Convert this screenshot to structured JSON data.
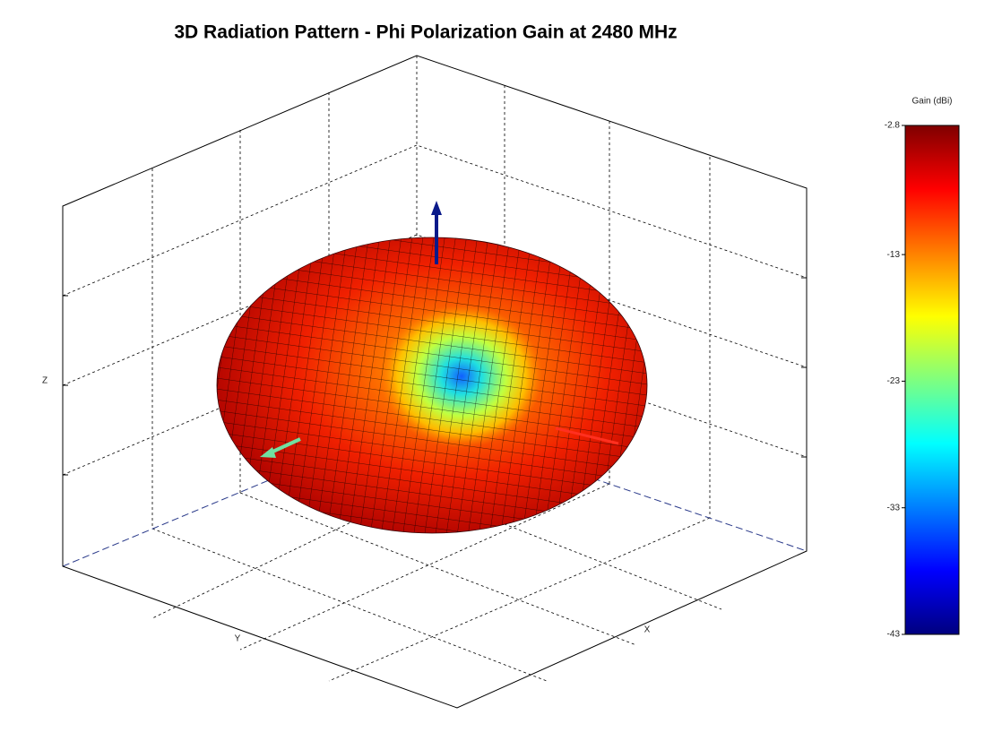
{
  "chart_data": {
    "type": "surface3d",
    "title": "3D Radiation Pattern - Phi Polarization Gain at 2480 MHz",
    "xlabel": "X",
    "ylabel": "Y",
    "zlabel": "Z",
    "colorbar": {
      "label": "Gain (dBi)",
      "lim": [
        -43,
        -2.8
      ],
      "ticks": [
        -2.8,
        -13,
        -23,
        -33,
        -43
      ],
      "colormap": "jet"
    }
  }
}
